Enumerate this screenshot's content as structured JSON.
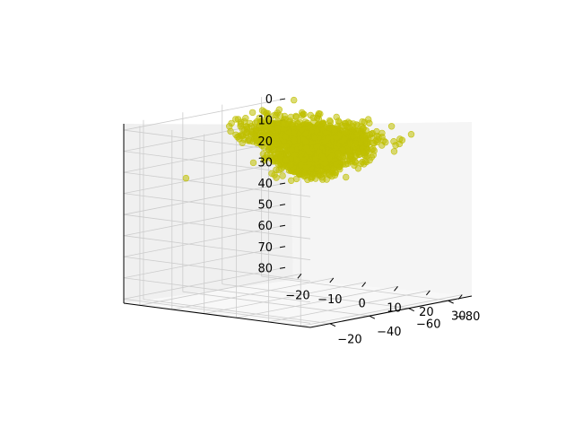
{
  "chart_data": {
    "type": "scatter",
    "projection": "3d",
    "title": "",
    "xlabel": "",
    "ylabel": "",
    "zlabel": "",
    "grid": true,
    "point_color": "#bfbf00",
    "point_alpha": 0.55,
    "xlim": [
      -25,
      33
    ],
    "ylim": [
      -92,
      -10
    ],
    "zlim": [
      -3,
      82
    ],
    "z_inverted": true,
    "x_ticks": [
      "−20",
      "−10",
      "0",
      "10",
      "20",
      "30"
    ],
    "y_ticks": [
      "−80",
      "−60",
      "−40",
      "−20"
    ],
    "z_ticks": [
      "0",
      "10",
      "20",
      "30",
      "40",
      "50",
      "60",
      "70",
      "80"
    ],
    "x_tick_values": [
      -20,
      -10,
      0,
      10,
      20,
      30
    ],
    "y_tick_values": [
      -80,
      -60,
      -40,
      -20
    ],
    "z_tick_values": [
      0,
      10,
      20,
      30,
      40,
      50,
      60,
      70,
      80
    ],
    "cluster": {
      "x_range": [
        -22,
        30
      ],
      "y_range": [
        -88,
        -12
      ],
      "z_range": [
        -2,
        18
      ],
      "approx_points": 2000
    },
    "outliers": [
      {
        "x": -24,
        "y": -40,
        "z": 28
      },
      {
        "x": 32,
        "y": -12,
        "z": 12
      },
      {
        "x": -18,
        "y": -85,
        "z": -2
      },
      {
        "x": 10,
        "y": -20,
        "z": -5
      }
    ]
  }
}
